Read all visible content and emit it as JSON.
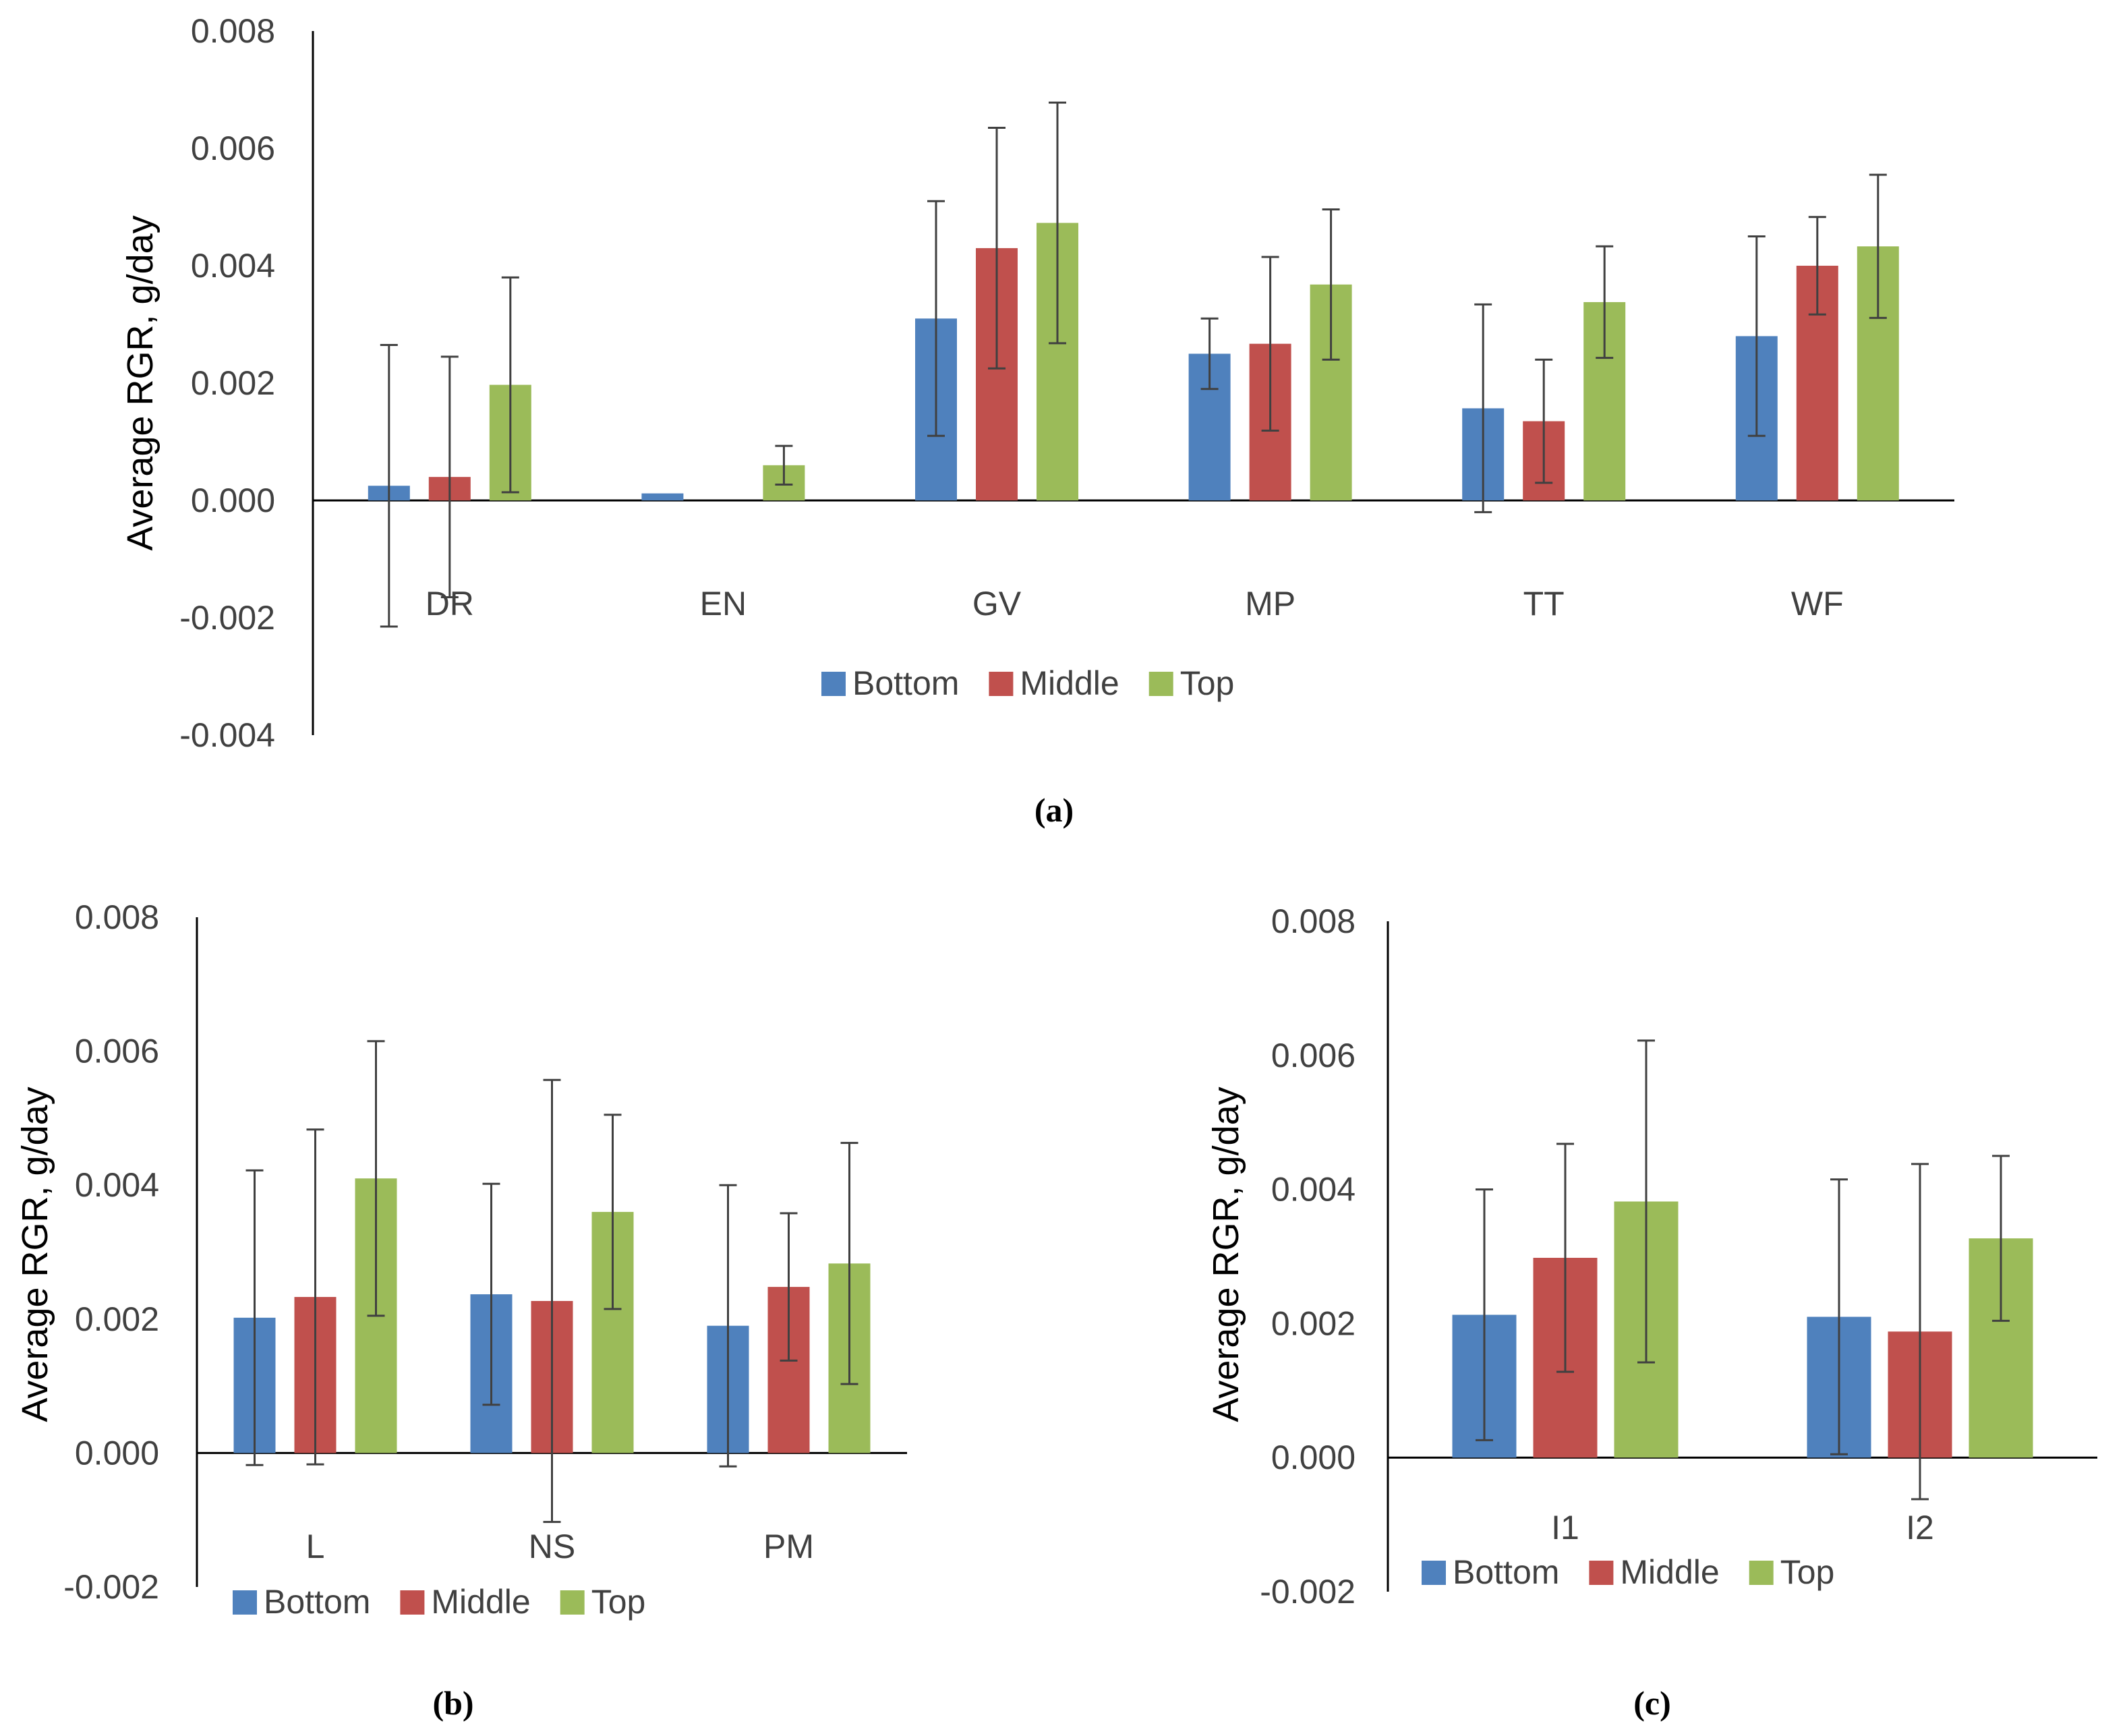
{
  "chart_data": [
    {
      "type": "bar",
      "panel_label": "(a)",
      "ylabel": "Average RGR, g/day",
      "ylim": [
        -0.004,
        0.008
      ],
      "yticks": [
        "0.008",
        "0.006",
        "0.004",
        "0.002",
        "0.000",
        "-0.002",
        "-0.004"
      ],
      "categories": [
        "DR",
        "EN",
        "GV",
        "MP",
        "TT",
        "WF"
      ],
      "legend_position": "bottom",
      "series": [
        {
          "name": "Bottom",
          "color": "#4f81bd",
          "values": [
            0.00025,
            0.00012,
            0.0031,
            0.0025,
            0.00157,
            0.0028
          ],
          "errors": [
            0.0024,
            null,
            0.002,
            0.0006,
            0.00177,
            0.0017
          ]
        },
        {
          "name": "Middle",
          "color": "#c0504d",
          "values": [
            0.0004,
            null,
            0.0043,
            0.00267,
            0.00135,
            0.004
          ],
          "errors": [
            0.00205,
            null,
            0.00205,
            0.00148,
            0.00105,
            0.00083
          ]
        },
        {
          "name": "Top",
          "color": "#9bbb59",
          "values": [
            0.00197,
            0.0006,
            0.00473,
            0.00368,
            0.00338,
            0.00433
          ],
          "errors": [
            0.00183,
            0.00033,
            0.00205,
            0.00128,
            0.00095,
            0.00122
          ]
        }
      ]
    },
    {
      "type": "bar",
      "panel_label": "(b)",
      "ylabel": "Average RGR, g/day",
      "ylim": [
        -0.002,
        0.008
      ],
      "yticks": [
        "0.008",
        "0.006",
        "0.004",
        "0.002",
        "0.000",
        "-0.002"
      ],
      "categories": [
        "L",
        "NS",
        "PM"
      ],
      "legend_position": "bottom",
      "series": [
        {
          "name": "Bottom",
          "color": "#4f81bd",
          "values": [
            0.00202,
            0.00237,
            0.0019
          ],
          "errors": [
            0.0022,
            0.00165,
            0.0021
          ]
        },
        {
          "name": "Middle",
          "color": "#c0504d",
          "values": [
            0.00233,
            0.00227,
            0.00248
          ],
          "errors": [
            0.0025,
            0.0033,
            0.0011
          ]
        },
        {
          "name": "Top",
          "color": "#9bbb59",
          "values": [
            0.0041,
            0.0036,
            0.00283
          ],
          "errors": [
            0.00205,
            0.00145,
            0.0018
          ]
        }
      ]
    },
    {
      "type": "bar",
      "panel_label": "(c)",
      "ylabel": "Average RGR, g/day",
      "ylim": [
        -0.002,
        0.008
      ],
      "yticks": [
        "0.008",
        "0.006",
        "0.004",
        "0.002",
        "0.000",
        "-0.002"
      ],
      "categories": [
        "I1",
        "I2"
      ],
      "legend_position": "bottom",
      "series": [
        {
          "name": "Bottom",
          "color": "#4f81bd",
          "values": [
            0.00213,
            0.0021
          ],
          "errors": [
            0.00187,
            0.00205
          ]
        },
        {
          "name": "Middle",
          "color": "#c0504d",
          "values": [
            0.00298,
            0.00188
          ],
          "errors": [
            0.0017,
            0.0025
          ]
        },
        {
          "name": "Top",
          "color": "#9bbb59",
          "values": [
            0.00382,
            0.00327
          ],
          "errors": [
            0.0024,
            0.00123
          ]
        }
      ]
    }
  ]
}
